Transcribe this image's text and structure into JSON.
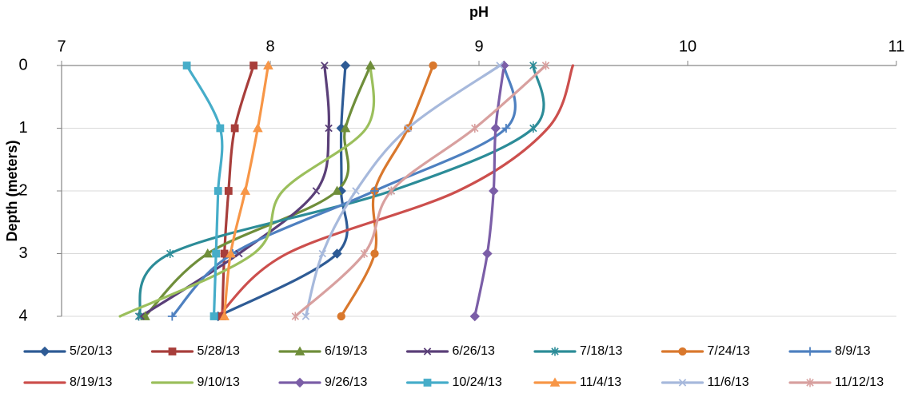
{
  "chart_data": {
    "type": "line",
    "xlabel": "pH",
    "ylabel": "Depth (meters)",
    "xlim": [
      7,
      11
    ],
    "ylim": [
      4,
      0
    ],
    "x_ticks": [
      7,
      8,
      9,
      10,
      11
    ],
    "y_ticks": [
      0,
      1,
      2,
      3,
      4
    ],
    "x_axis_position": "top",
    "y_axis_inverted": true,
    "grid": "horizontal",
    "smoothed_lines": true,
    "legend_position": "bottom",
    "series": [
      {
        "name": "5/20/13",
        "color": "#2E5B95",
        "marker": "diamond",
        "points": [
          [
            8.36,
            0
          ],
          [
            8.34,
            1
          ],
          [
            8.34,
            2
          ],
          [
            8.32,
            3
          ],
          [
            7.75,
            4
          ]
        ]
      },
      {
        "name": "5/28/13",
        "color": "#A83E3B",
        "marker": "square",
        "points": [
          [
            7.92,
            0
          ],
          [
            7.83,
            1
          ],
          [
            7.8,
            2
          ],
          [
            7.78,
            3
          ],
          [
            7.77,
            4
          ]
        ]
      },
      {
        "name": "6/19/13",
        "color": "#6F8E3A",
        "marker": "triangle",
        "points": [
          [
            8.48,
            0
          ],
          [
            8.36,
            1
          ],
          [
            8.32,
            2
          ],
          [
            7.7,
            3
          ],
          [
            7.4,
            4
          ]
        ]
      },
      {
        "name": "6/26/13",
        "color": "#5A3F78",
        "marker": "x",
        "points": [
          [
            8.26,
            0
          ],
          [
            8.28,
            1
          ],
          [
            8.22,
            2
          ],
          [
            7.85,
            3
          ],
          [
            7.38,
            4
          ]
        ]
      },
      {
        "name": "7/18/13",
        "color": "#2C8C98",
        "marker": "star",
        "points": [
          [
            9.26,
            0
          ],
          [
            9.26,
            1
          ],
          [
            8.58,
            2
          ],
          [
            7.52,
            3
          ],
          [
            7.37,
            4
          ]
        ]
      },
      {
        "name": "7/24/13",
        "color": "#D9782D",
        "marker": "circle",
        "points": [
          [
            8.78,
            0
          ],
          [
            8.66,
            1
          ],
          [
            8.5,
            2
          ],
          [
            8.5,
            3
          ],
          [
            8.34,
            4
          ]
        ]
      },
      {
        "name": "8/9/13",
        "color": "#4E80C0",
        "marker": "plus",
        "points": [
          [
            9.12,
            0
          ],
          [
            9.13,
            1
          ],
          [
            8.5,
            2
          ],
          [
            7.82,
            3
          ],
          [
            7.53,
            4
          ]
        ]
      },
      {
        "name": "8/19/13",
        "color": "#CC4F4D",
        "marker": "none",
        "points": [
          [
            9.45,
            0
          ],
          [
            9.33,
            1
          ],
          [
            8.9,
            2
          ],
          [
            8.08,
            3
          ],
          [
            7.75,
            4
          ]
        ]
      },
      {
        "name": "9/10/13",
        "color": "#9BBF5C",
        "marker": "none",
        "points": [
          [
            8.48,
            0
          ],
          [
            8.46,
            1
          ],
          [
            8.06,
            2
          ],
          [
            7.92,
            3
          ],
          [
            7.28,
            4
          ]
        ]
      },
      {
        "name": "9/26/13",
        "color": "#7B5EA7",
        "marker": "diamond",
        "points": [
          [
            9.12,
            0
          ],
          [
            9.08,
            1
          ],
          [
            9.07,
            2
          ],
          [
            9.04,
            3
          ],
          [
            8.98,
            4
          ]
        ]
      },
      {
        "name": "10/24/13",
        "color": "#46ADC9",
        "marker": "square",
        "points": [
          [
            7.6,
            0
          ],
          [
            7.76,
            1
          ],
          [
            7.75,
            2
          ],
          [
            7.74,
            3
          ],
          [
            7.73,
            4
          ]
        ]
      },
      {
        "name": "11/4/13",
        "color": "#F79647",
        "marker": "triangle",
        "points": [
          [
            7.99,
            0
          ],
          [
            7.94,
            1
          ],
          [
            7.88,
            2
          ],
          [
            7.81,
            3
          ],
          [
            7.78,
            4
          ]
        ]
      },
      {
        "name": "11/6/13",
        "color": "#A7B9DC",
        "marker": "x",
        "points": [
          [
            9.1,
            0
          ],
          [
            8.66,
            1
          ],
          [
            8.41,
            2
          ],
          [
            8.25,
            3
          ],
          [
            8.17,
            4
          ]
        ]
      },
      {
        "name": "11/12/13",
        "color": "#D8A09F",
        "marker": "star",
        "points": [
          [
            9.32,
            0
          ],
          [
            8.98,
            1
          ],
          [
            8.58,
            2
          ],
          [
            8.45,
            3
          ],
          [
            8.12,
            4
          ]
        ]
      }
    ]
  }
}
